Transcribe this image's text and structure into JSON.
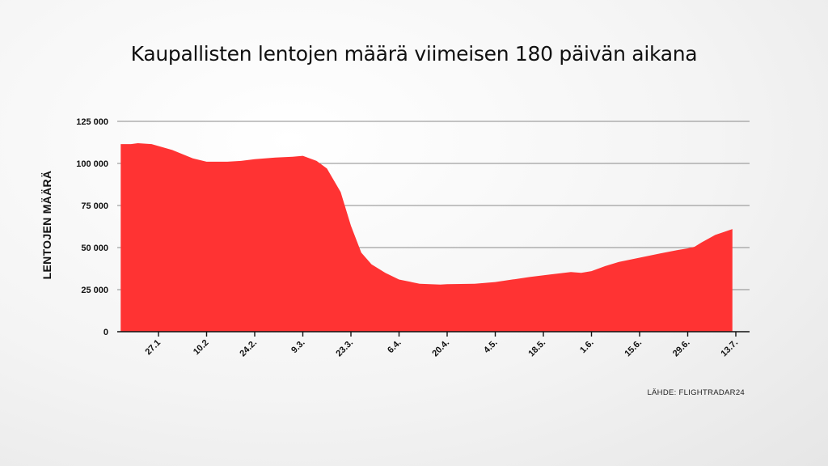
{
  "chart_data": {
    "type": "area",
    "title": "Kaupallisten lentojen määrä viimeisen 180 päivän aikana",
    "ylabel": "LENTOJEN MÄÄRÄ",
    "xlabel": "",
    "source": "LÄHDE: FLIGHTRADAR24",
    "ylim": [
      0,
      125000
    ],
    "yticks": [
      0,
      25000,
      50000,
      75000,
      100000,
      125000
    ],
    "ytick_labels": [
      "0",
      "25 000",
      "50 000",
      "75 000",
      "100 000",
      "125 000"
    ],
    "xlim": [
      -8,
      176
    ],
    "xticks": [
      {
        "day": 4,
        "label": "27.1"
      },
      {
        "day": 18,
        "label": "10.2"
      },
      {
        "day": 32,
        "label": "24.2."
      },
      {
        "day": 46,
        "label": "9.3."
      },
      {
        "day": 60,
        "label": "23.3."
      },
      {
        "day": 74,
        "label": "6.4."
      },
      {
        "day": 88,
        "label": "20.4."
      },
      {
        "day": 102,
        "label": "4.5."
      },
      {
        "day": 116,
        "label": "18.5."
      },
      {
        "day": 130,
        "label": "1.6."
      },
      {
        "day": 144,
        "label": "15.6."
      },
      {
        "day": 158,
        "label": "29.6."
      },
      {
        "day": 172,
        "label": "13.7."
      }
    ],
    "grid": true,
    "color": "#ff3333",
    "series": [
      {
        "x": [
          -7,
          -4,
          -2,
          2,
          8,
          14,
          18,
          24,
          28,
          32,
          38,
          43,
          46,
          50,
          53,
          57,
          60,
          63,
          66,
          70,
          74,
          80,
          86,
          88,
          96,
          102,
          112,
          118,
          124,
          127,
          130,
          134,
          138,
          144,
          150,
          155,
          158,
          160,
          162,
          166,
          171
        ],
        "y": [
          111500,
          111500,
          112000,
          111500,
          108000,
          103000,
          101000,
          101000,
          101500,
          102500,
          103500,
          104000,
          104500,
          101500,
          97000,
          83000,
          63000,
          47000,
          40000,
          35000,
          31000,
          28500,
          28000,
          28200,
          28500,
          29500,
          32500,
          34000,
          35500,
          35000,
          36000,
          39000,
          41500,
          44000,
          46500,
          48500,
          49500,
          50500,
          53000,
          57500,
          61000
        ]
      }
    ]
  }
}
